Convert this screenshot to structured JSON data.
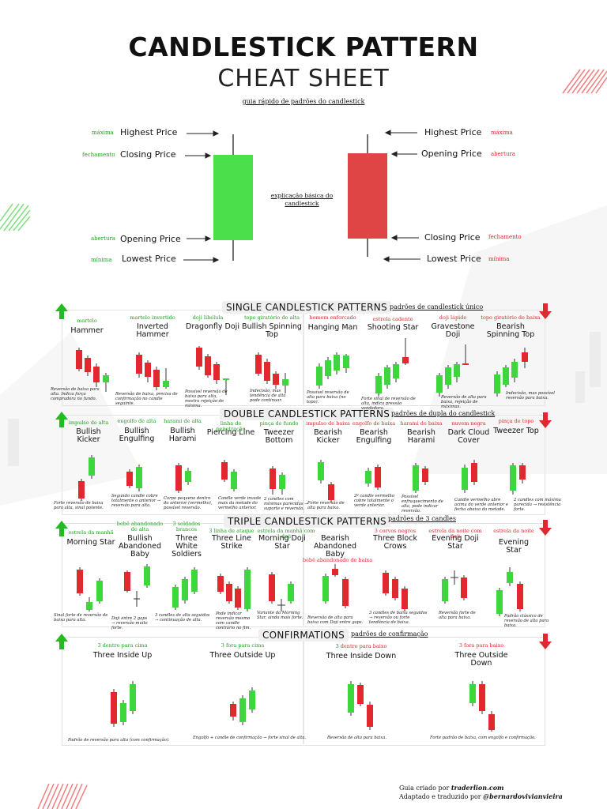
{
  "header": {
    "title_line1": "CANDLESTICK PATTERN",
    "title_line2": "CHEAT SHEET",
    "subtitle": "guia rápido de padrões do candlestick"
  },
  "anatomy": {
    "center_label": "explicação básica do candlestick",
    "bull": {
      "highest": "Highest Price",
      "highest_pt": "máxima",
      "closing": "Closing Price",
      "closing_pt": "fechamento",
      "opening": "Opening Price",
      "opening_pt": "abertura",
      "lowest": "Lowest Price",
      "lowest_pt": "mínima"
    },
    "bear": {
      "highest": "Highest Price",
      "highest_pt": "máxima",
      "opening": "Opening Price",
      "opening_pt": "abertura",
      "closing": "Closing Price",
      "closing_pt": "fechamento",
      "lowest": "Lowest Price",
      "lowest_pt": "mínima"
    }
  },
  "single": {
    "title": "SINGLE CANDLESTICK PATTERNS",
    "subtitle": "padrões de candlestick único",
    "bullish": [
      {
        "name": "Hammer",
        "pt": "martelo",
        "desc": "Reversão de baixa para alta. Indica força compradora no fundo."
      },
      {
        "name": "Inverted Hammer",
        "pt": "martelo invertido",
        "desc": "Reversão de baixa, precisa de confirmação no candle seguinte."
      },
      {
        "name": "Dragonfly Doji",
        "pt": "doji libélula",
        "desc": "Possível reversão de baixa para alta, mostra rejeição de mínima."
      },
      {
        "name": "Bullish Spinning Top",
        "pt": "topo giratório de alta",
        "desc": "Indecisão, mas tendência de alta pode continuar."
      }
    ],
    "bearish": [
      {
        "name": "Hanging Man",
        "pt": "homem enforcado",
        "desc": "Possível reversão de alta para baixa (no topo)."
      },
      {
        "name": "Shooting Star",
        "pt": "estrela cadente",
        "desc": "Forte sinal de reversão de alta, indica pressão vendedora."
      },
      {
        "name": "Gravestone Doji",
        "pt": "doji lápide",
        "desc": "Reversão de alta para baixa, rejeição de máximas."
      },
      {
        "name": "Bearish Spinning Top",
        "pt": "topo giratório de baixa",
        "desc": "Indecisão, mas possível reversão para baixa."
      }
    ]
  },
  "double": {
    "title": "DOUBLE CANDLESTICK PATTERNS",
    "subtitle": "padrões de dupla do candlestick",
    "bullish": [
      {
        "name": "Bullish Kicker",
        "pt": "impulso de alta",
        "desc": "Forte reversão de baixa para alta, sinal potente."
      },
      {
        "name": "Bullish Engulfing",
        "pt": "engolfo de alta",
        "desc": "Segundo candle cobre totalmente o anterior → reversão para alta."
      },
      {
        "name": "Bullish Harami",
        "pt": "harami de alta",
        "desc": "Corpo pequeno dentro do anterior (vermelho), possível reversão."
      },
      {
        "name": "Piercing Line",
        "pt": "linha de penetração",
        "desc": "Candle verde invade mais da metade do vermelho anterior."
      },
      {
        "name": "Tweezer Bottom",
        "pt": "pinça de fundo",
        "desc": "2 candles com mínimas parecidas → suporte e reversão."
      }
    ],
    "bearish": [
      {
        "name": "Bearish Kicker",
        "pt": "impulso de baixa",
        "desc": "Forte reversão de alta para baixa."
      },
      {
        "name": "Bearish Engulfing",
        "pt": "engolfo de baixa",
        "desc": "2º candle vermelho cobre totalmente o verde anterior."
      },
      {
        "name": "Bearish Harami",
        "pt": "harami de baixa",
        "desc": "Possível enfraquecimento de alta, pode indicar reversão."
      },
      {
        "name": "Dark Cloud Cover",
        "pt": "nuvem negra",
        "desc": "Candle vermelho abre acima do verde anterior e fecha abaixo da metade."
      },
      {
        "name": "Tweezer Top",
        "pt": "pinça de topo",
        "desc": "2 candles com máxima parecida → resistência forte."
      }
    ]
  },
  "triple": {
    "title": "TRIPLE CANDLESTICK PATTERNS",
    "subtitle": "padrões de 3 candles",
    "bullish": [
      {
        "name": "Morning Star",
        "pt": "estrela da manhã",
        "desc": "Sinal forte de reversão de baixa para alta."
      },
      {
        "name": "Bullish Abandoned Baby",
        "pt": "bebê abandonado de alta",
        "desc": "Doji entre 2 gaps → reversão muito forte."
      },
      {
        "name": "Three White Soldiers",
        "pt": "3 soldados brancos",
        "desc": "3 candles de alta seguidos → continuação de alta."
      },
      {
        "name": "Three Line Strike",
        "pt": "3 linha de ataque",
        "desc": "Pode indicar reversão mesmo com candle contrário no fim."
      },
      {
        "name": "Morning Doji Star",
        "pt": "estrela da manhã com doji",
        "desc": "Variante da Morning Star, ainda mais forte."
      }
    ],
    "bearish": [
      {
        "name": "Bearish Abandoned Baby",
        "pt": "bebê abandonado de baixa",
        "desc": "Reversão de alta para baixa com Doji entre gaps."
      },
      {
        "name": "Three Block Crows",
        "pt": "3 corvos negros",
        "desc": "3 candles de baixa seguidos → reversão ou forte tendência de baixa."
      },
      {
        "name": "Evening Doji Star",
        "pt": "estrela da noite com doji",
        "desc": "Reversão forte de alta para baixa."
      },
      {
        "name": "Evening Star",
        "pt": "estrela da noite",
        "desc": "Padrão clássico de reversão de alta para baixa."
      }
    ]
  },
  "confirmations": {
    "title": "CONFIRMATIONS",
    "subtitle": "padrões de confirmação",
    "bullish": [
      {
        "name": "Three Inside Up",
        "pt": "3 dentro para cima",
        "desc": "Padrão de reversão para alta (com confirmação)."
      },
      {
        "name": "Three Outside Up",
        "pt": "3 fora para cima",
        "desc": "Engolfo + candle de confirmação → forte sinal de alta."
      }
    ],
    "bearish": [
      {
        "name": "Three Inside Down",
        "pt": "3 dentro para baixo",
        "desc": "Reversão de alta para baixa."
      },
      {
        "name": "Three Outside Down",
        "pt": "3 fora para baixo",
        "desc": "Forte padrão de baixa, com engolfo e confirmação."
      }
    ]
  },
  "credits": {
    "line1_prefix": "Guia criado por ",
    "line1_name": "traderlion.com",
    "line2_prefix": "Adaptado e traduzido por ",
    "line2_name": "@bernardovivianvieira"
  },
  "colors": {
    "bull": "#3dd63d",
    "bear": "#e0282e"
  },
  "icons": [
    "arrow-up-icon",
    "arrow-down-icon"
  ]
}
